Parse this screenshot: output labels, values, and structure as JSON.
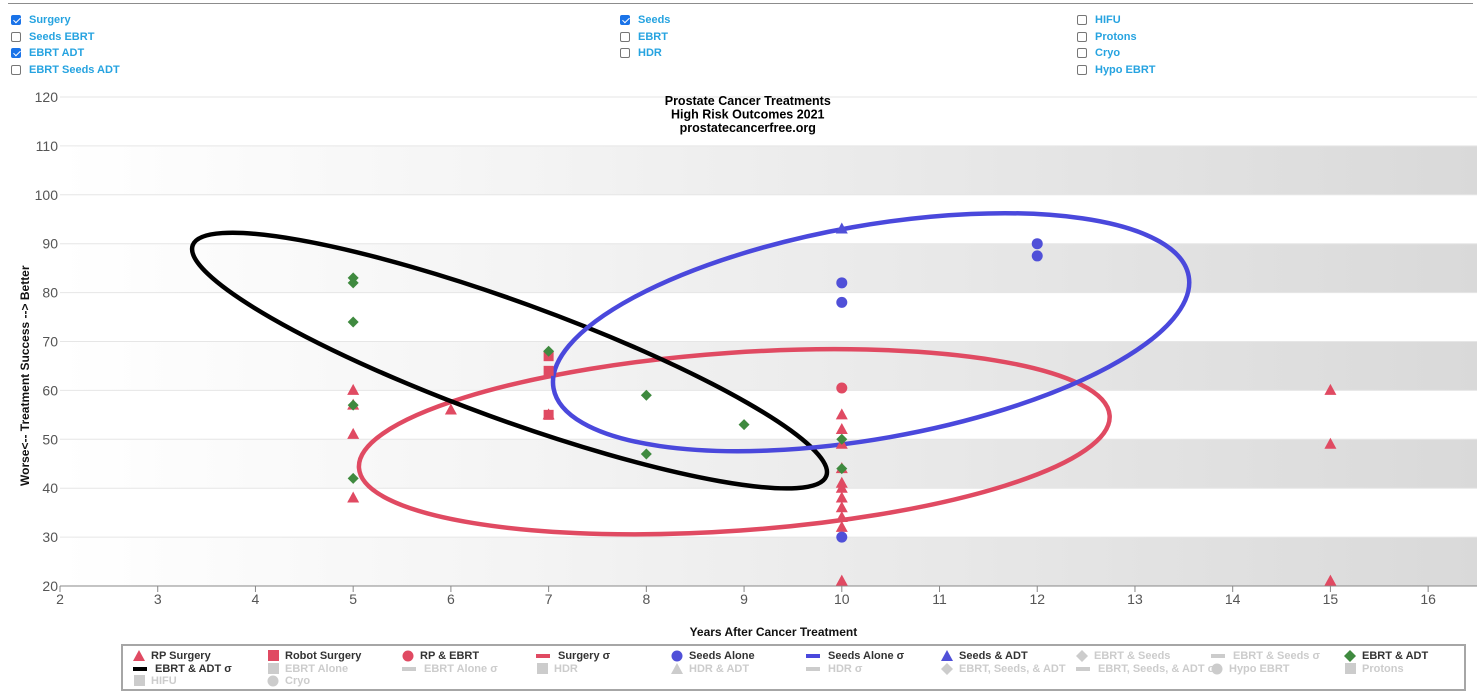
{
  "filters": {
    "col1": [
      {
        "label": "Surgery",
        "checked": true
      },
      {
        "label": "Seeds EBRT",
        "checked": false
      },
      {
        "label": "EBRT ADT",
        "checked": true
      },
      {
        "label": "EBRT Seeds ADT",
        "checked": false
      }
    ],
    "col2": [
      {
        "label": "Seeds",
        "checked": true
      },
      {
        "label": "EBRT",
        "checked": false
      },
      {
        "label": "HDR",
        "checked": false
      }
    ],
    "col3": [
      {
        "label": "HIFU",
        "checked": false
      },
      {
        "label": "Protons",
        "checked": false
      },
      {
        "label": "Cryo",
        "checked": false
      },
      {
        "label": "Hypo EBRT",
        "checked": false
      }
    ]
  },
  "chart_data": {
    "type": "scatter",
    "title": [
      "Prostate Cancer Treatments",
      "High Risk Outcomes 2021",
      "prostatecancerfree.org"
    ],
    "xlabel": "Years After Cancer Treatment",
    "ylabel": "Worse<-- Treatment Success --> Better",
    "xlim": [
      2,
      16.5
    ],
    "ylim": [
      20,
      120
    ],
    "xticks": [
      2,
      3,
      4,
      5,
      6,
      7,
      8,
      9,
      10,
      11,
      12,
      13,
      14,
      15,
      16
    ],
    "yticks": [
      20,
      30,
      40,
      50,
      60,
      70,
      80,
      90,
      100,
      110,
      120
    ],
    "series": [
      {
        "name": "RP Surgery",
        "marker": "triangle",
        "color": "#e04a62",
        "points": [
          [
            5,
            60
          ],
          [
            5,
            57
          ],
          [
            5,
            51
          ],
          [
            5,
            38
          ],
          [
            6,
            56
          ],
          [
            7,
            55
          ],
          [
            10,
            55
          ],
          [
            10,
            52
          ],
          [
            10,
            49
          ],
          [
            10,
            44
          ],
          [
            10,
            41
          ],
          [
            10,
            40
          ],
          [
            10,
            38
          ],
          [
            10,
            36
          ],
          [
            10,
            34
          ],
          [
            10,
            32
          ],
          [
            10,
            21
          ],
          [
            15,
            60
          ],
          [
            15,
            49
          ],
          [
            15,
            21
          ]
        ]
      },
      {
        "name": "Robot Surgery",
        "marker": "square",
        "color": "#e04a62",
        "points": [
          [
            7,
            67
          ],
          [
            7,
            64
          ],
          [
            7,
            55
          ]
        ]
      },
      {
        "name": "RP & EBRT",
        "marker": "circle",
        "color": "#e04a62",
        "points": [
          [
            10,
            60.5
          ]
        ]
      },
      {
        "name": "Seeds Alone",
        "marker": "circle",
        "color": "#5050d8",
        "points": [
          [
            10,
            82
          ],
          [
            10,
            78
          ],
          [
            10,
            30
          ],
          [
            12,
            90
          ],
          [
            12,
            87.5
          ]
        ]
      },
      {
        "name": "Seeds & ADT",
        "marker": "triangle",
        "color": "#5050d8",
        "points": [
          [
            10,
            93
          ]
        ]
      },
      {
        "name": "EBRT & ADT",
        "marker": "diamond",
        "color": "#3f8a3f",
        "points": [
          [
            5,
            83
          ],
          [
            5,
            82
          ],
          [
            5,
            74
          ],
          [
            5,
            57
          ],
          [
            5,
            42
          ],
          [
            7,
            68
          ],
          [
            8,
            59
          ],
          [
            8,
            47
          ],
          [
            9,
            53
          ],
          [
            10,
            50
          ],
          [
            10,
            44
          ]
        ]
      }
    ],
    "ellipses": [
      {
        "name": "Surgery σ",
        "color": "#e04a62",
        "cx": 8.9,
        "cy": 49.5,
        "rx": 3.85,
        "ry": 18.2,
        "tilt": -4
      },
      {
        "name": "EBRT & ADT σ",
        "color": "#000000",
        "cx": 6.6,
        "cy": 66.1,
        "rx": 3.45,
        "ry": 12,
        "tilt": 20
      },
      {
        "name": "Seeds Alone σ",
        "color": "#4a48dc",
        "cx": 10.3,
        "cy": 71.9,
        "rx": 3.3,
        "ry": 21.8,
        "tilt": -10
      }
    ]
  },
  "legend": [
    {
      "label": "RP Surgery",
      "symbol": "triangle",
      "color": "#e04a62",
      "shown": true
    },
    {
      "label": "Robot Surgery",
      "symbol": "square",
      "color": "#e04a62",
      "shown": true
    },
    {
      "label": "RP & EBRT",
      "symbol": "circle",
      "color": "#e04a62",
      "shown": true
    },
    {
      "label": "Surgery σ",
      "symbol": "line",
      "color": "#e04a62",
      "shown": true
    },
    {
      "label": "Seeds Alone",
      "symbol": "circle",
      "color": "#5050d8",
      "shown": true
    },
    {
      "label": "Seeds Alone σ",
      "symbol": "line",
      "color": "#4a48dc",
      "shown": true
    },
    {
      "label": "Seeds & ADT",
      "symbol": "triangle",
      "color": "#5050d8",
      "shown": true
    },
    {
      "label": "EBRT & Seeds",
      "symbol": "diamond",
      "color": "#cccccc",
      "shown": false
    },
    {
      "label": "EBRT & Seeds σ",
      "symbol": "line",
      "color": "#cccccc",
      "shown": false
    },
    {
      "label": "EBRT & ADT",
      "symbol": "diamond",
      "color": "#3f8a3f",
      "shown": true
    },
    {
      "label": "EBRT & ADT σ",
      "symbol": "line",
      "color": "#000000",
      "shown": true
    },
    {
      "label": "EBRT Alone",
      "symbol": "square",
      "color": "#cccccc",
      "shown": false
    },
    {
      "label": "EBRT Alone σ",
      "symbol": "line",
      "color": "#cccccc",
      "shown": false
    },
    {
      "label": "HDR",
      "symbol": "square",
      "color": "#cccccc",
      "shown": false
    },
    {
      "label": "HDR & ADT",
      "symbol": "triangle",
      "color": "#cccccc",
      "shown": false
    },
    {
      "label": "HDR σ",
      "symbol": "line",
      "color": "#cccccc",
      "shown": false
    },
    {
      "label": "EBRT, Seeds, & ADT",
      "symbol": "diamond",
      "color": "#cccccc",
      "shown": false
    },
    {
      "label": "EBRT, Seeds, & ADT σ",
      "symbol": "line",
      "color": "#cccccc",
      "shown": false
    },
    {
      "label": "Hypo EBRT",
      "symbol": "circle",
      "color": "#cccccc",
      "shown": false
    },
    {
      "label": "Protons",
      "symbol": "square",
      "color": "#cccccc",
      "shown": false
    },
    {
      "label": "HIFU",
      "symbol": "square",
      "color": "#cccccc",
      "shown": false
    },
    {
      "label": "Cryo",
      "symbol": "circle",
      "color": "#cccccc",
      "shown": false
    }
  ]
}
